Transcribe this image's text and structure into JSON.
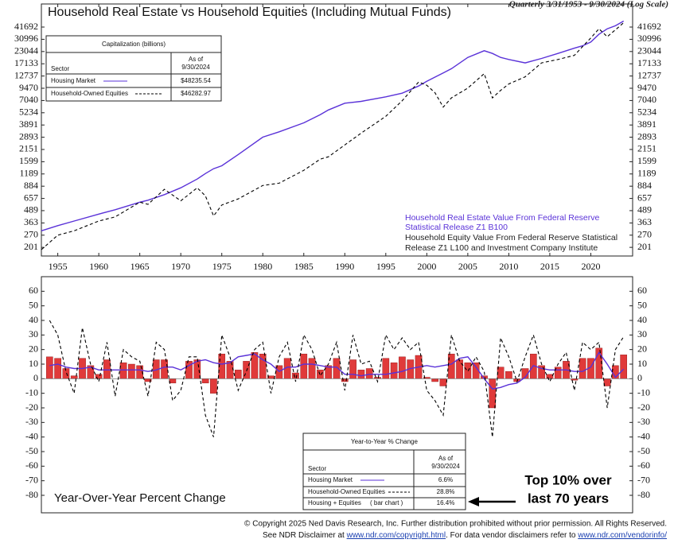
{
  "chart_data": [
    {
      "type": "line",
      "title": "Household Real Estate vs Household Equities (Including Mutual Funds)",
      "subtitle": "Quarterly 3/31/1953 - 9/30/2024 (Log Scale)",
      "log_scale": true,
      "x": [
        1953,
        1955,
        1957,
        1960,
        1962,
        1965,
        1966,
        1968,
        1970,
        1972,
        1973,
        1974,
        1975,
        1977,
        1980,
        1982,
        1985,
        1987,
        1988,
        1990,
        1992,
        1995,
        1997,
        1999,
        2000,
        2001,
        2002,
        2003,
        2005,
        2007,
        2008,
        2009,
        2010,
        2012,
        2014,
        2016,
        2018,
        2019,
        2020,
        2021,
        2022,
        2023,
        2024
      ],
      "series": [
        {
          "name": "Housing Market",
          "color": "#5a32d8",
          "style": "solid",
          "values": [
            300,
            340,
            380,
            450,
            500,
            600,
            630,
            720,
            850,
            1050,
            1200,
            1350,
            1450,
            1900,
            2900,
            3300,
            4100,
            5000,
            5600,
            6600,
            6900,
            7700,
            8400,
            10000,
            11200,
            12400,
            13700,
            15200,
            20000,
            23500,
            22000,
            20000,
            19000,
            17500,
            19500,
            22000,
            25000,
            26500,
            29000,
            35000,
            40000,
            43000,
            48235.54
          ]
        },
        {
          "name": "Household-Owned Equities",
          "color": "#000000",
          "style": "dashed",
          "values": [
            190,
            270,
            300,
            380,
            420,
            600,
            570,
            820,
            620,
            850,
            700,
            430,
            560,
            650,
            900,
            950,
            1300,
            1700,
            1800,
            2400,
            3200,
            4800,
            7000,
            11000,
            10200,
            8500,
            6000,
            7500,
            9500,
            13500,
            7500,
            9000,
            10500,
            12500,
            17500,
            19000,
            21000,
            26000,
            32000,
            40000,
            33000,
            39000,
            46282.97
          ]
        }
      ],
      "xlim": [
        1953,
        2025.1
      ],
      "xticks": [
        1955,
        1960,
        1965,
        1970,
        1975,
        1980,
        1985,
        1990,
        1995,
        2000,
        2005,
        2010,
        2015,
        2020
      ],
      "ylim": [
        163,
        72900
      ],
      "yticks": [
        41692,
        30996,
        23044,
        17133,
        12737,
        9470,
        7040,
        5234,
        3891,
        2893,
        2151,
        1599,
        1189,
        884,
        657,
        489,
        363,
        270,
        201
      ],
      "notes": [
        {
          "color": "#5a32d8",
          "lines": [
            "Household Real Estate Value From Federal Reserve",
            "Statistical Release Z1 B100"
          ]
        },
        {
          "color": "#222222",
          "lines": [
            "Household Equity Value From Federal Reserve Statistical",
            "Release Z1 L100 and Investment Company Institute"
          ]
        }
      ],
      "table": {
        "title": "Capitalization (billions)",
        "sector": "Sector",
        "date": [
          "As of",
          "9/30/2024"
        ],
        "values": [
          "$48235.54",
          "$46282.97"
        ]
      }
    },
    {
      "type": "bar_line",
      "title": "Year-Over-Year Percent Change",
      "x": [
        1954,
        1955,
        1956,
        1957,
        1958,
        1959,
        1960,
        1961,
        1962,
        1963,
        1964,
        1965,
        1966,
        1967,
        1968,
        1969,
        1970,
        1971,
        1972,
        1973,
        1974,
        1975,
        1976,
        1977,
        1978,
        1979,
        1980,
        1981,
        1982,
        1983,
        1984,
        1985,
        1986,
        1987,
        1988,
        1989,
        1990,
        1991,
        1992,
        1993,
        1994,
        1995,
        1996,
        1997,
        1998,
        1999,
        2000,
        2001,
        2002,
        2003,
        2004,
        2005,
        2006,
        2007,
        2008,
        2009,
        2010,
        2011,
        2012,
        2013,
        2014,
        2015,
        2016,
        2017,
        2018,
        2019,
        2020,
        2021,
        2022,
        2023,
        2024
      ],
      "series": [
        {
          "name": "Housing Market",
          "color": "#5a32d8",
          "style": "solid",
          "values": [
            9,
            10,
            8,
            7,
            7,
            8,
            6,
            6,
            6,
            6,
            6,
            6,
            5,
            6,
            8,
            8,
            6,
            9,
            12,
            13,
            11,
            10,
            11,
            15,
            16,
            17,
            13,
            10,
            5,
            8,
            8,
            10,
            10,
            9,
            8,
            8,
            3,
            3,
            2,
            3,
            3,
            3,
            4,
            5,
            7,
            8,
            9,
            8,
            9,
            10,
            14,
            15,
            8,
            0,
            -7,
            -6,
            -4,
            -3,
            1,
            9,
            7,
            6,
            6,
            6,
            5,
            5,
            8,
            18,
            10,
            1,
            6.6
          ]
        },
        {
          "name": "Household-Owned Equities",
          "color": "#000000",
          "style": "dashed",
          "values": [
            40,
            30,
            5,
            -10,
            35,
            10,
            -2,
            25,
            -12,
            20,
            15,
            12,
            -12,
            25,
            20,
            -15,
            -8,
            15,
            15,
            -25,
            -40,
            30,
            15,
            -8,
            5,
            20,
            25,
            -10,
            15,
            25,
            -2,
            30,
            20,
            2,
            10,
            25,
            -8,
            30,
            10,
            12,
            -2,
            30,
            20,
            28,
            20,
            25,
            -8,
            -15,
            -25,
            30,
            12,
            5,
            15,
            5,
            -40,
            28,
            15,
            -2,
            15,
            30,
            10,
            -2,
            10,
            18,
            -8,
            25,
            20,
            25,
            -20,
            20,
            28.8
          ]
        },
        {
          "name": "Housing + Equities",
          "note": "( bar chart )",
          "color": "#e03a3a",
          "style": "bar",
          "values": [
            15,
            14,
            7,
            2,
            14,
            9,
            3,
            13,
            0,
            11,
            10,
            9,
            -2,
            13,
            13,
            -3,
            0,
            12,
            13,
            -3,
            -10,
            17,
            12,
            6,
            12,
            18,
            17,
            2,
            9,
            14,
            4,
            17,
            14,
            6,
            9,
            14,
            -2,
            13,
            6,
            7,
            1,
            14,
            11,
            15,
            13,
            16,
            1,
            -2,
            -5,
            17,
            13,
            11,
            11,
            2,
            -20,
            8,
            5,
            -2,
            7,
            17,
            9,
            3,
            8,
            12,
            -1,
            14,
            14,
            21,
            -5,
            9,
            16.4
          ]
        }
      ],
      "xlim": [
        1953,
        2025.1
      ],
      "ylim": [
        -92,
        70
      ],
      "yticks": [
        60,
        50,
        40,
        30,
        20,
        10,
        0,
        -10,
        -20,
        -30,
        -40,
        -50,
        -60,
        -70,
        -80
      ],
      "table": {
        "title": "Year-to-Year % Change",
        "sector": "Sector",
        "date": [
          "As of",
          "9/30/2024"
        ],
        "values": [
          "6.6%",
          "28.8%",
          "16.4%"
        ]
      },
      "annotation": [
        "Top 10% over",
        "last 70 years"
      ]
    }
  ],
  "footer": {
    "line1": "© Copyright 2025 Ned Davis Research, Inc.  Further distribution prohibited without prior permission.  All Rights Reserved.",
    "line2": [
      "See NDR Disclaimer at ",
      "www.ndr.com/copyright.html",
      ". For data vendor disclaimers refer to ",
      "www.ndr.com/vendorinfo/"
    ]
  }
}
